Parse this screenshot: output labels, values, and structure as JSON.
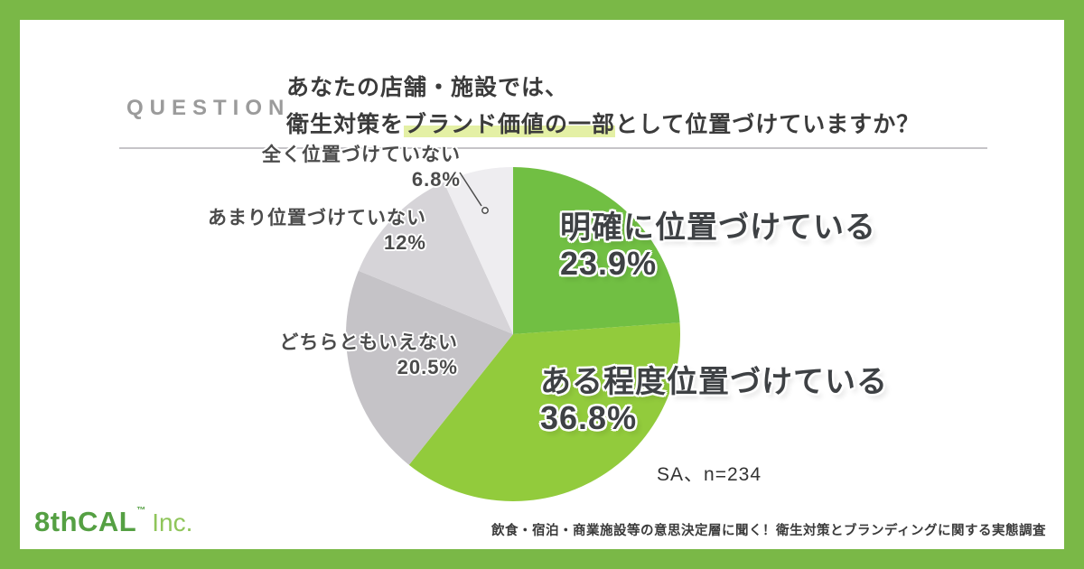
{
  "frame": {
    "border_color": "#7ab847",
    "card_color": "#ffffff"
  },
  "header": {
    "question_label": "QUESTION",
    "question_line1": "あなたの店舗・施設では、",
    "question_line2_pre": "衛生対策を",
    "question_line2_highlight": "ブランド価値の一部",
    "question_line2_post": "として位置づけていますか？",
    "highlight_color": "#e4f0a5"
  },
  "chart_data": {
    "type": "pie",
    "title": "あなたの店舗・施設では、衛生対策をブランド価値の一部として位置づけていますか？",
    "note": "SA、n=234",
    "start_angle_deg": 0,
    "direction": "clockwise",
    "legend_position": "around-slices",
    "slices": [
      {
        "label": "明確に位置づけている",
        "value_pct": 23.9,
        "display": "23.9%",
        "color": "#71bf43"
      },
      {
        "label": "ある程度位置づけている",
        "value_pct": 36.8,
        "display": "36.8%",
        "color": "#92cb3c"
      },
      {
        "label": "どちらともいえない",
        "value_pct": 20.5,
        "display": "20.5%",
        "color": "#c5c3c7"
      },
      {
        "label": "あまり位置づけていない",
        "value_pct": 12,
        "display": "12%",
        "color": "#d6d4d8"
      },
      {
        "label": "全く位置づけていない",
        "value_pct": 6.8,
        "display": "6.8%",
        "color": "#eeedf0"
      }
    ]
  },
  "footer": {
    "logo_main": "8thCAL",
    "logo_tm": "™",
    "logo_suffix": "Inc.",
    "caption": "飲食・宿泊・商業施設等の意思決定層に聞く！衛生対策とブランディングに関する実態調査"
  }
}
